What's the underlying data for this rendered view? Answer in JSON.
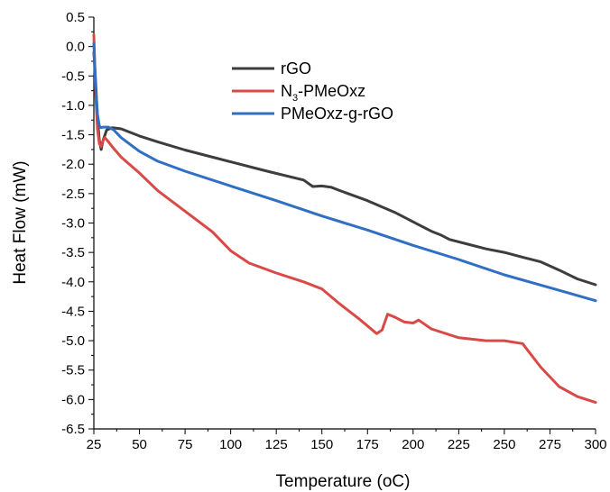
{
  "chart_data": {
    "type": "line",
    "title": "",
    "xlabel": "Temperature (oC)",
    "ylabel": "Heat Flow (mW)",
    "xlim": [
      25,
      300
    ],
    "ylim": [
      -6.5,
      0.5
    ],
    "xticks": [
      25,
      50,
      75,
      100,
      125,
      150,
      175,
      200,
      225,
      250,
      275,
      300
    ],
    "yticks": [
      -6.5,
      -6.0,
      -5.5,
      -5.0,
      -4.5,
      -4.0,
      -3.5,
      -3.0,
      -2.5,
      -2.0,
      -1.5,
      -1.0,
      -0.5,
      0.0,
      0.5
    ],
    "ytick_labels": [
      "-6.5",
      "-6.0",
      "-5.5",
      "-5.0",
      "-4.5",
      "-4.0",
      "-3.5",
      "-3.0",
      "-2.5",
      "-2.0",
      "-1.5",
      "-1.0",
      "-0.5",
      "0.0",
      "0.5"
    ],
    "grid": false,
    "legend_position": "top-center",
    "series": [
      {
        "name": "rGO",
        "color": "#3d3d3d",
        "x": [
          25,
          26,
          27,
          28,
          29,
          30,
          32,
          35,
          40,
          50,
          60,
          75,
          100,
          120,
          140,
          145,
          150,
          155,
          160,
          175,
          190,
          200,
          210,
          215,
          220,
          230,
          240,
          250,
          260,
          270,
          280,
          290,
          300
        ],
        "y": [
          -0.1,
          -0.6,
          -1.2,
          -1.6,
          -1.75,
          -1.6,
          -1.42,
          -1.38,
          -1.4,
          -1.52,
          -1.62,
          -1.76,
          -1.96,
          -2.12,
          -2.27,
          -2.38,
          -2.37,
          -2.39,
          -2.45,
          -2.62,
          -2.82,
          -2.98,
          -3.14,
          -3.2,
          -3.28,
          -3.36,
          -3.44,
          -3.5,
          -3.58,
          -3.66,
          -3.8,
          -3.95,
          -4.05
        ]
      },
      {
        "name": "N3-PMeOxz",
        "display_name": "N",
        "subscript": "3",
        "name_suffix": "-PMeOxz",
        "color": "#d94a46",
        "x": [
          25,
          26,
          27,
          28,
          29,
          30,
          31,
          33,
          35,
          40,
          50,
          60,
          75,
          90,
          100,
          110,
          125,
          140,
          150,
          160,
          170,
          180,
          183,
          186,
          190,
          195,
          200,
          203,
          210,
          225,
          240,
          250,
          260,
          265,
          270,
          280,
          290,
          300
        ],
        "y": [
          0.2,
          -0.8,
          -1.4,
          -1.65,
          -1.7,
          -1.6,
          -1.55,
          -1.62,
          -1.7,
          -1.88,
          -2.15,
          -2.45,
          -2.8,
          -3.15,
          -3.47,
          -3.68,
          -3.85,
          -4.0,
          -4.12,
          -4.38,
          -4.62,
          -4.88,
          -4.82,
          -4.55,
          -4.6,
          -4.68,
          -4.7,
          -4.65,
          -4.8,
          -4.95,
          -5.0,
          -5.0,
          -5.05,
          -5.25,
          -5.45,
          -5.78,
          -5.95,
          -6.05
        ]
      },
      {
        "name": "PMeOxz-g-rGO",
        "color": "#2f6fc4",
        "x": [
          25,
          26,
          27,
          28,
          29,
          30,
          33,
          36,
          40,
          50,
          60,
          75,
          100,
          125,
          150,
          175,
          200,
          225,
          250,
          275,
          300
        ],
        "y": [
          0.05,
          -0.7,
          -1.15,
          -1.35,
          -1.38,
          -1.37,
          -1.37,
          -1.42,
          -1.55,
          -1.78,
          -1.95,
          -2.12,
          -2.37,
          -2.62,
          -2.88,
          -3.12,
          -3.38,
          -3.62,
          -3.88,
          -4.1,
          -4.32
        ]
      }
    ]
  }
}
